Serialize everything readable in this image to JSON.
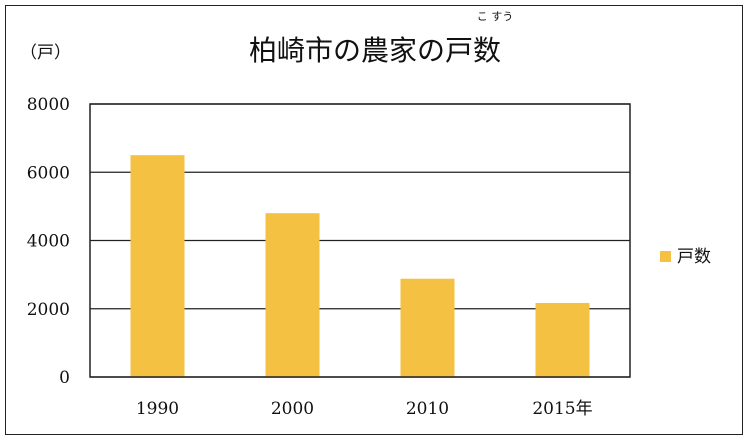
{
  "chart_data": {
    "type": "bar",
    "title": "柏崎市の農家の戸数",
    "title_ruby": "こ すう",
    "unit_label": "（戸）",
    "categories": [
      "1990",
      "2000",
      "2010",
      "2015年"
    ],
    "series": [
      {
        "name": "戸数",
        "values": [
          6500,
          4800,
          2880,
          2170
        ],
        "color": "#F5C142"
      }
    ],
    "ylim": [
      0,
      8000
    ],
    "yticks": [
      "0",
      "2000",
      "4000",
      "6000",
      "8000"
    ],
    "grid": true,
    "legend_position": "right"
  }
}
